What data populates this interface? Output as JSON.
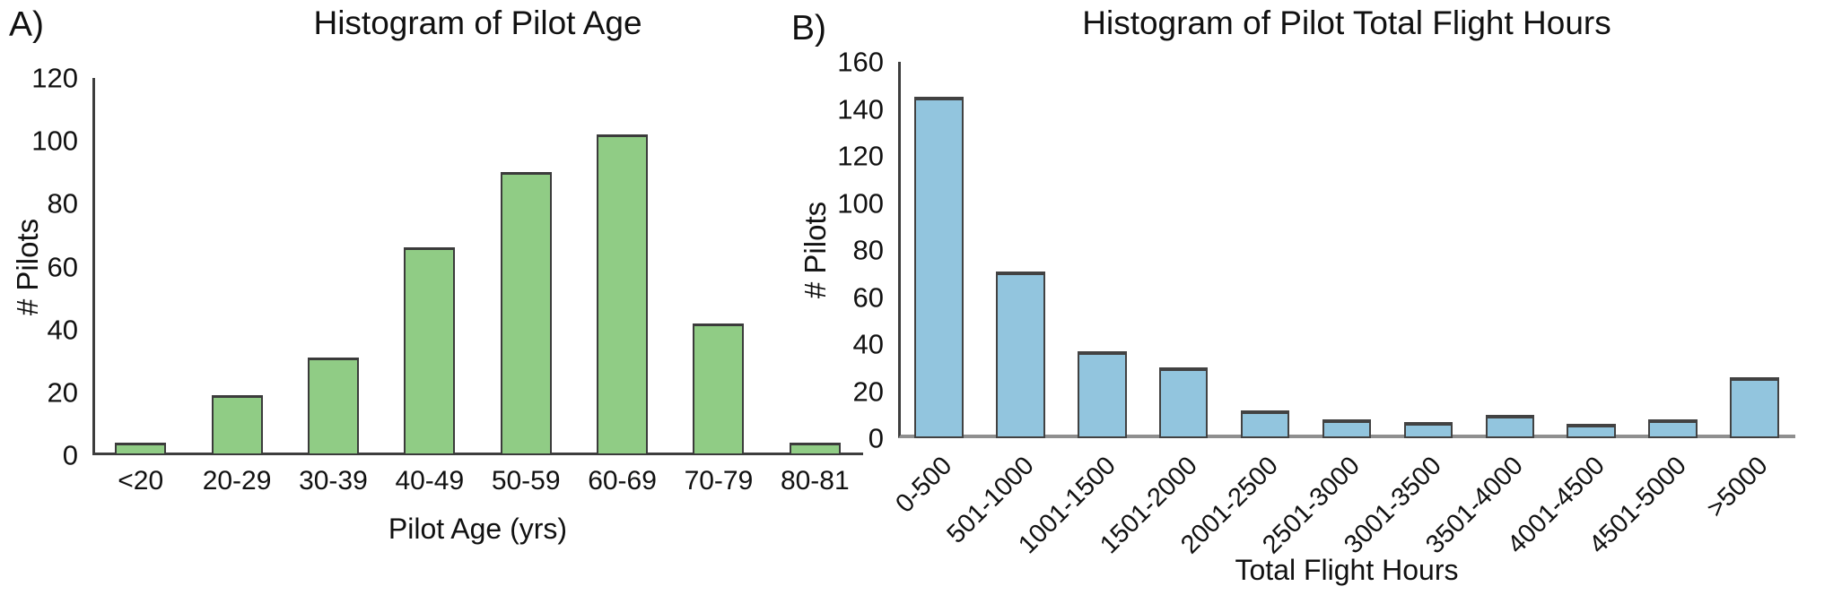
{
  "figure": {
    "background": "#ffffff",
    "text_color": "#111111"
  },
  "chart_data": [
    {
      "type": "bar",
      "panel_label": "A)",
      "title": "Histogram of Pilot Age",
      "xlabel": "Pilot Age (yrs)",
      "ylabel": "# Pilots",
      "categories": [
        "<20",
        "20-29",
        "30-39",
        "40-49",
        "50-59",
        "60-69",
        "70-79",
        "80-81"
      ],
      "values": [
        4,
        19,
        31,
        66,
        90,
        102,
        42,
        4
      ],
      "ylim": [
        0,
        120
      ],
      "yticks": [
        0,
        20,
        40,
        60,
        80,
        100,
        120
      ],
      "bar_color": "#90cc85",
      "bar_border_color": "#3b3b3b",
      "xtick_rotation": 0,
      "grid": false,
      "legend": "none"
    },
    {
      "type": "bar",
      "panel_label": "B)",
      "title": "Histogram of Pilot Total Flight Hours",
      "xlabel": "Total Flight Hours",
      "ylabel": "# Pilots",
      "categories": [
        "0-500",
        "501-1000",
        "1001-1500",
        "1501-2000",
        "2001-2500",
        "2501-3000",
        "3001-3500",
        "3501-4000",
        "4001-4500",
        "4501-5000",
        ">5000"
      ],
      "values": [
        145,
        71,
        37,
        30,
        12,
        8,
        7,
        10,
        6,
        8,
        26
      ],
      "ylim": [
        0,
        160
      ],
      "yticks": [
        0,
        20,
        40,
        60,
        80,
        100,
        120,
        140,
        160
      ],
      "bar_color": "#92c5de",
      "bar_border_color": "#424242",
      "xtick_rotation": 45,
      "grid": false,
      "legend": "none"
    }
  ]
}
